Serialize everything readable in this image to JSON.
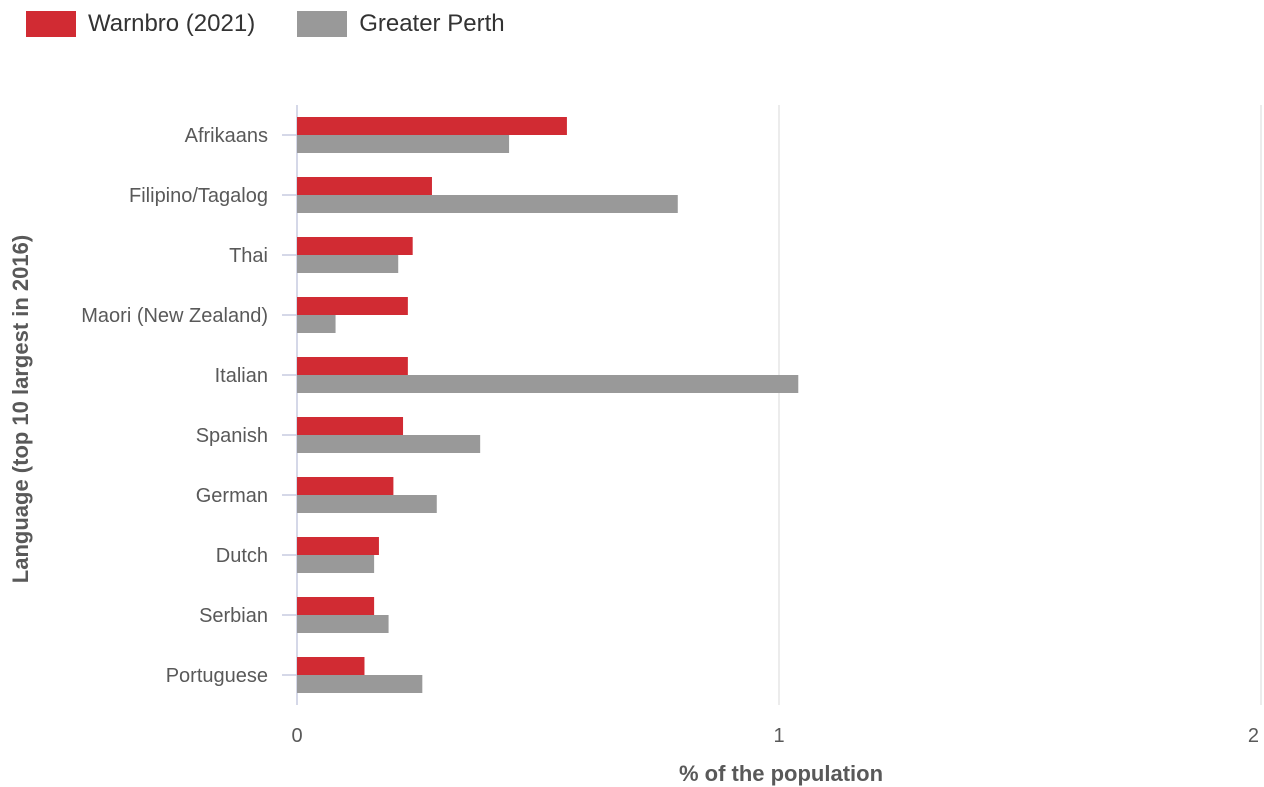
{
  "chart_data": {
    "type": "bar",
    "orientation": "horizontal",
    "categories": [
      "Afrikaans",
      "Filipino/Tagalog",
      "Thai",
      "Maori (New Zealand)",
      "Italian",
      "Spanish",
      "German",
      "Dutch",
      "Serbian",
      "Portuguese"
    ],
    "series": [
      {
        "name": "Warnbro (2021)",
        "color": "#d12b33",
        "values": [
          0.56,
          0.28,
          0.24,
          0.23,
          0.23,
          0.22,
          0.2,
          0.17,
          0.16,
          0.14
        ]
      },
      {
        "name": "Greater Perth",
        "color": "#999999",
        "values": [
          0.44,
          0.79,
          0.21,
          0.08,
          1.04,
          0.38,
          0.29,
          0.16,
          0.19,
          0.26
        ]
      }
    ],
    "xlabel": "% of the population",
    "ylabel": "Language (top 10 largest in 2016)",
    "xlim": [
      0,
      2
    ],
    "xticks": [
      "0",
      "1",
      "2"
    ],
    "grid": true,
    "legend_position": "top-left"
  }
}
